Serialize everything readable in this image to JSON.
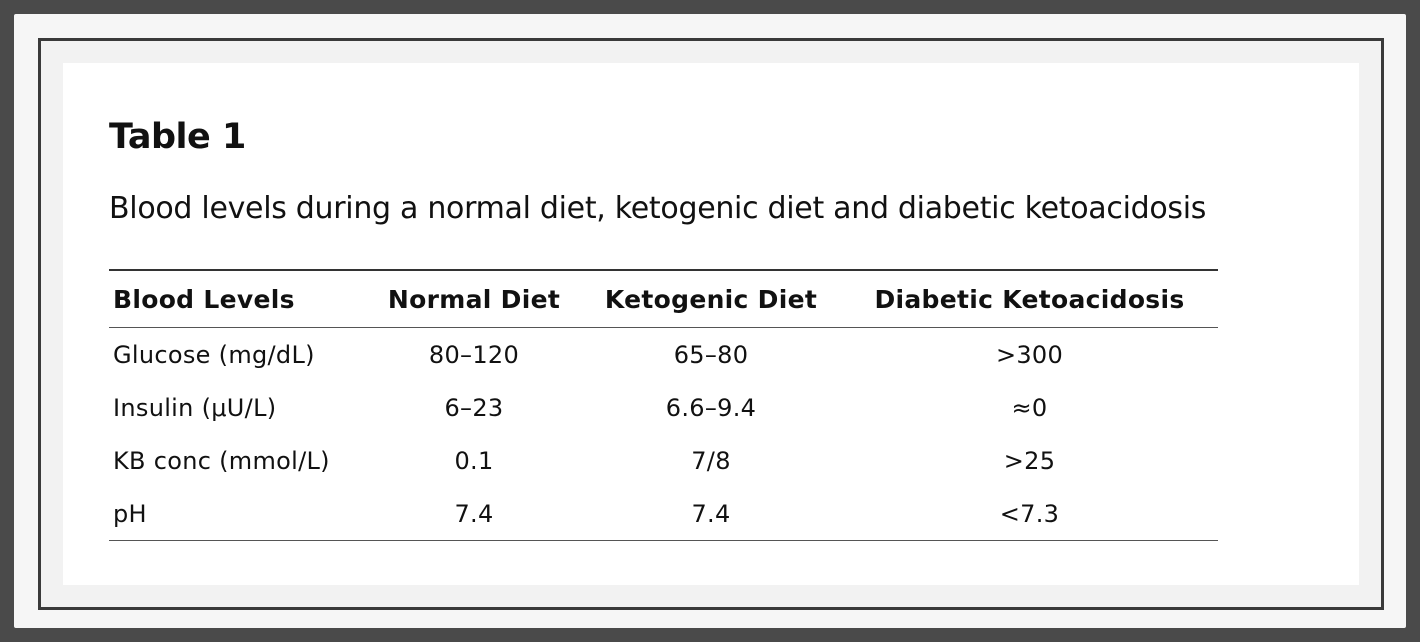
{
  "document": {
    "title": "Table 1",
    "caption": "Blood levels during a normal diet, ketogenic diet and diabetic ketoacidosis"
  },
  "table": {
    "headers": [
      "Blood Levels",
      "Normal Diet",
      "Ketogenic Diet",
      "Diabetic Ketoacidosis"
    ],
    "rows": [
      [
        "Glucose (mg/dL)",
        "80–120",
        "65–80",
        ">300"
      ],
      [
        "Insulin (μU/L)",
        "6–23",
        "6.6–9.4",
        "≈0"
      ],
      [
        "KB conc (mmol/L)",
        "0.1",
        "7/8",
        ">25"
      ],
      [
        "pH",
        "7.4",
        "7.4",
        "<7.3"
      ]
    ]
  }
}
